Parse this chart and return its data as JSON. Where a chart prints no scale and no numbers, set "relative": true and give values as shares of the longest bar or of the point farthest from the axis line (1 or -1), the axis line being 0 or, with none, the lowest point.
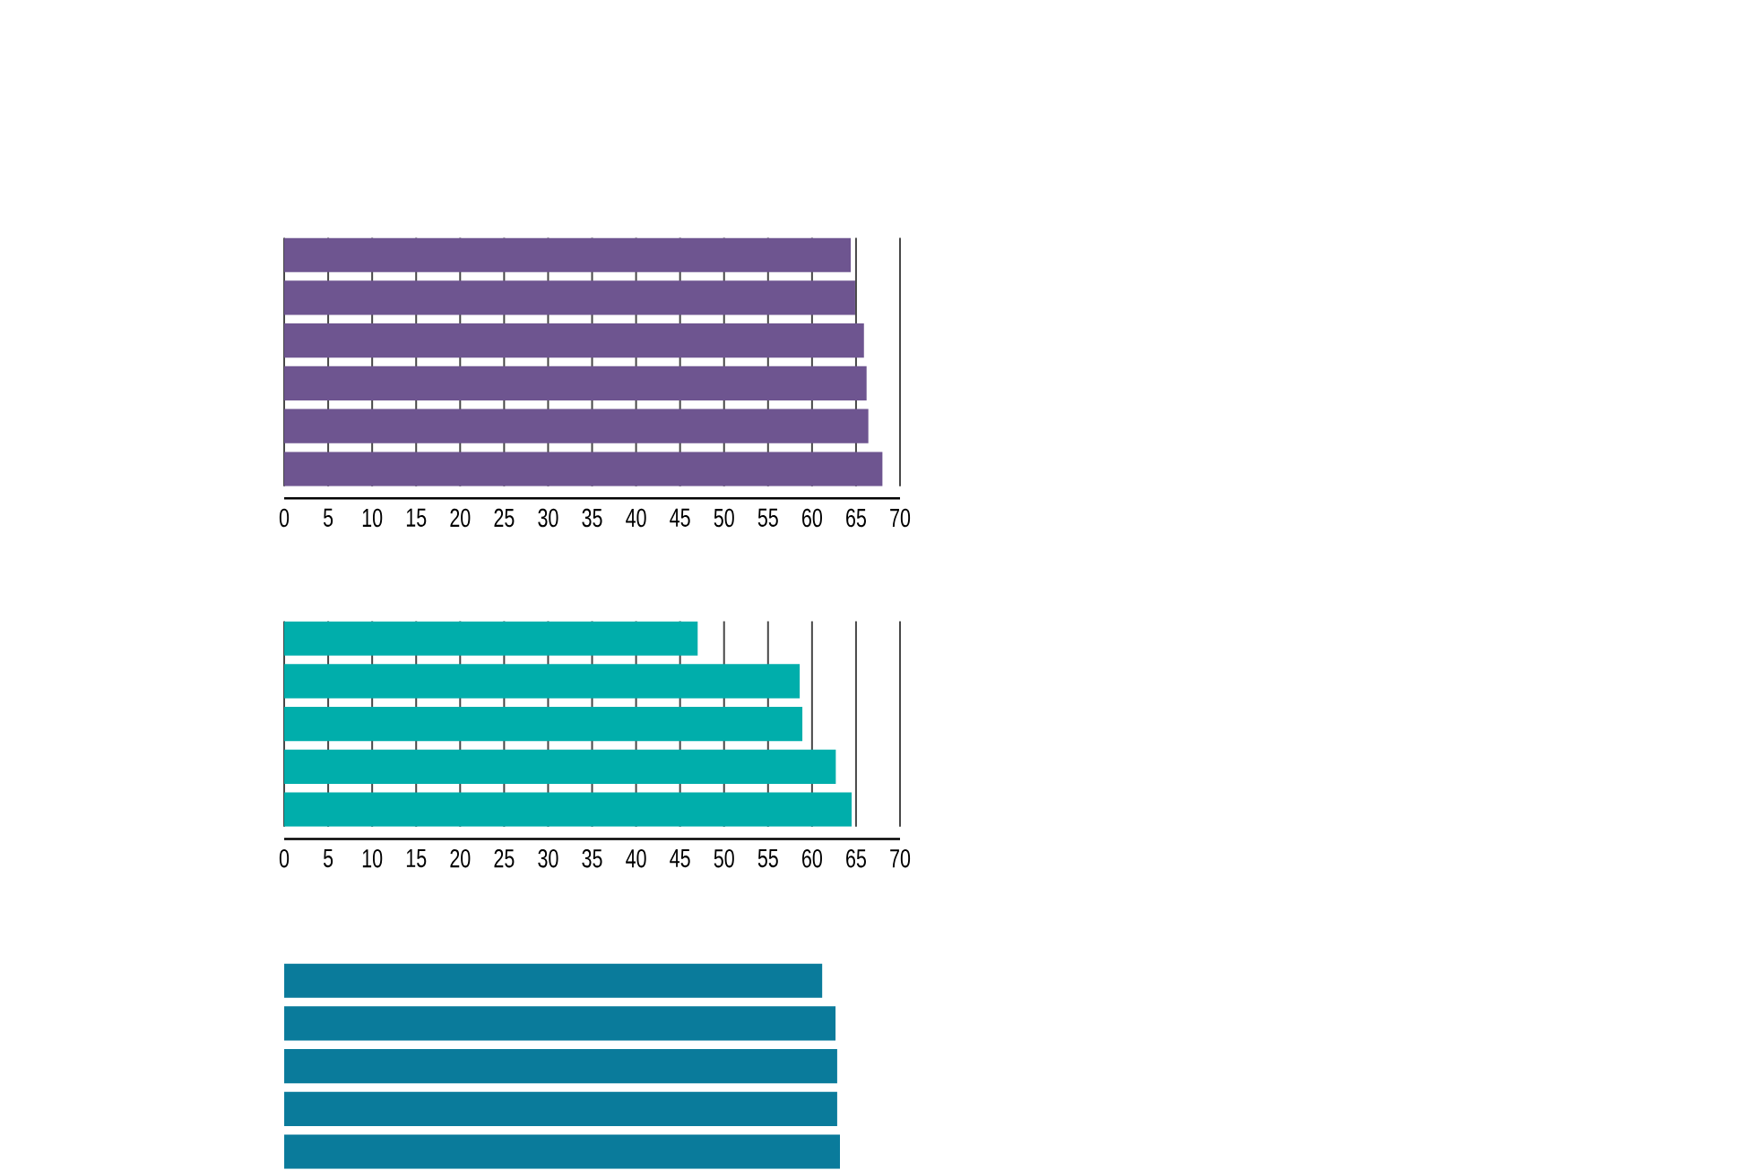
{
  "chart_data": [
    {
      "type": "bar",
      "orientation": "horizontal",
      "categories": [
        null,
        null,
        null,
        null,
        null,
        null
      ],
      "values": [
        64.4,
        64.9,
        65.9,
        66.2,
        66.4,
        68.0
      ],
      "color": "#6e5590",
      "xlim": [
        0,
        70
      ],
      "xticks": [
        0,
        5,
        10,
        15,
        20,
        25,
        30,
        35,
        40,
        45,
        50,
        55,
        60,
        65,
        70
      ],
      "grid": "x",
      "tick_labels": "x"
    },
    {
      "type": "bar",
      "orientation": "horizontal",
      "categories": [
        null,
        null,
        null,
        null,
        null
      ],
      "values": [
        47.0,
        58.6,
        58.9,
        62.7,
        64.5
      ],
      "color": "#00aeab",
      "xlim": [
        0,
        70
      ],
      "xticks": [
        0,
        5,
        10,
        15,
        20,
        25,
        30,
        35,
        40,
        45,
        50,
        55,
        60,
        65,
        70
      ],
      "grid": "x",
      "tick_labels": "x"
    },
    {
      "type": "bar",
      "orientation": "horizontal",
      "categories": [
        null,
        null,
        null,
        null,
        null
      ],
      "values": [
        0.968,
        0.992,
        0.995,
        0.995,
        1.0
      ],
      "color": "#0a7b9b",
      "relative": true
    }
  ]
}
